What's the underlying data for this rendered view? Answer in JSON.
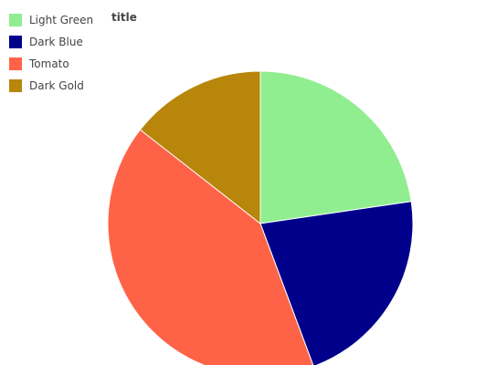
{
  "chart_data": {
    "type": "pie",
    "title": "title",
    "legend_position": "top-left",
    "categories": [
      "Light Green",
      "Dark Blue",
      "Tomato",
      "Dark Gold"
    ],
    "values": [
      22,
      21,
      40,
      14
    ],
    "colors": [
      "#90EE90",
      "#00008B",
      "#FF6347",
      "#B8860B"
    ],
    "start_angle_deg": 0,
    "direction": "clockwise_from_top"
  }
}
